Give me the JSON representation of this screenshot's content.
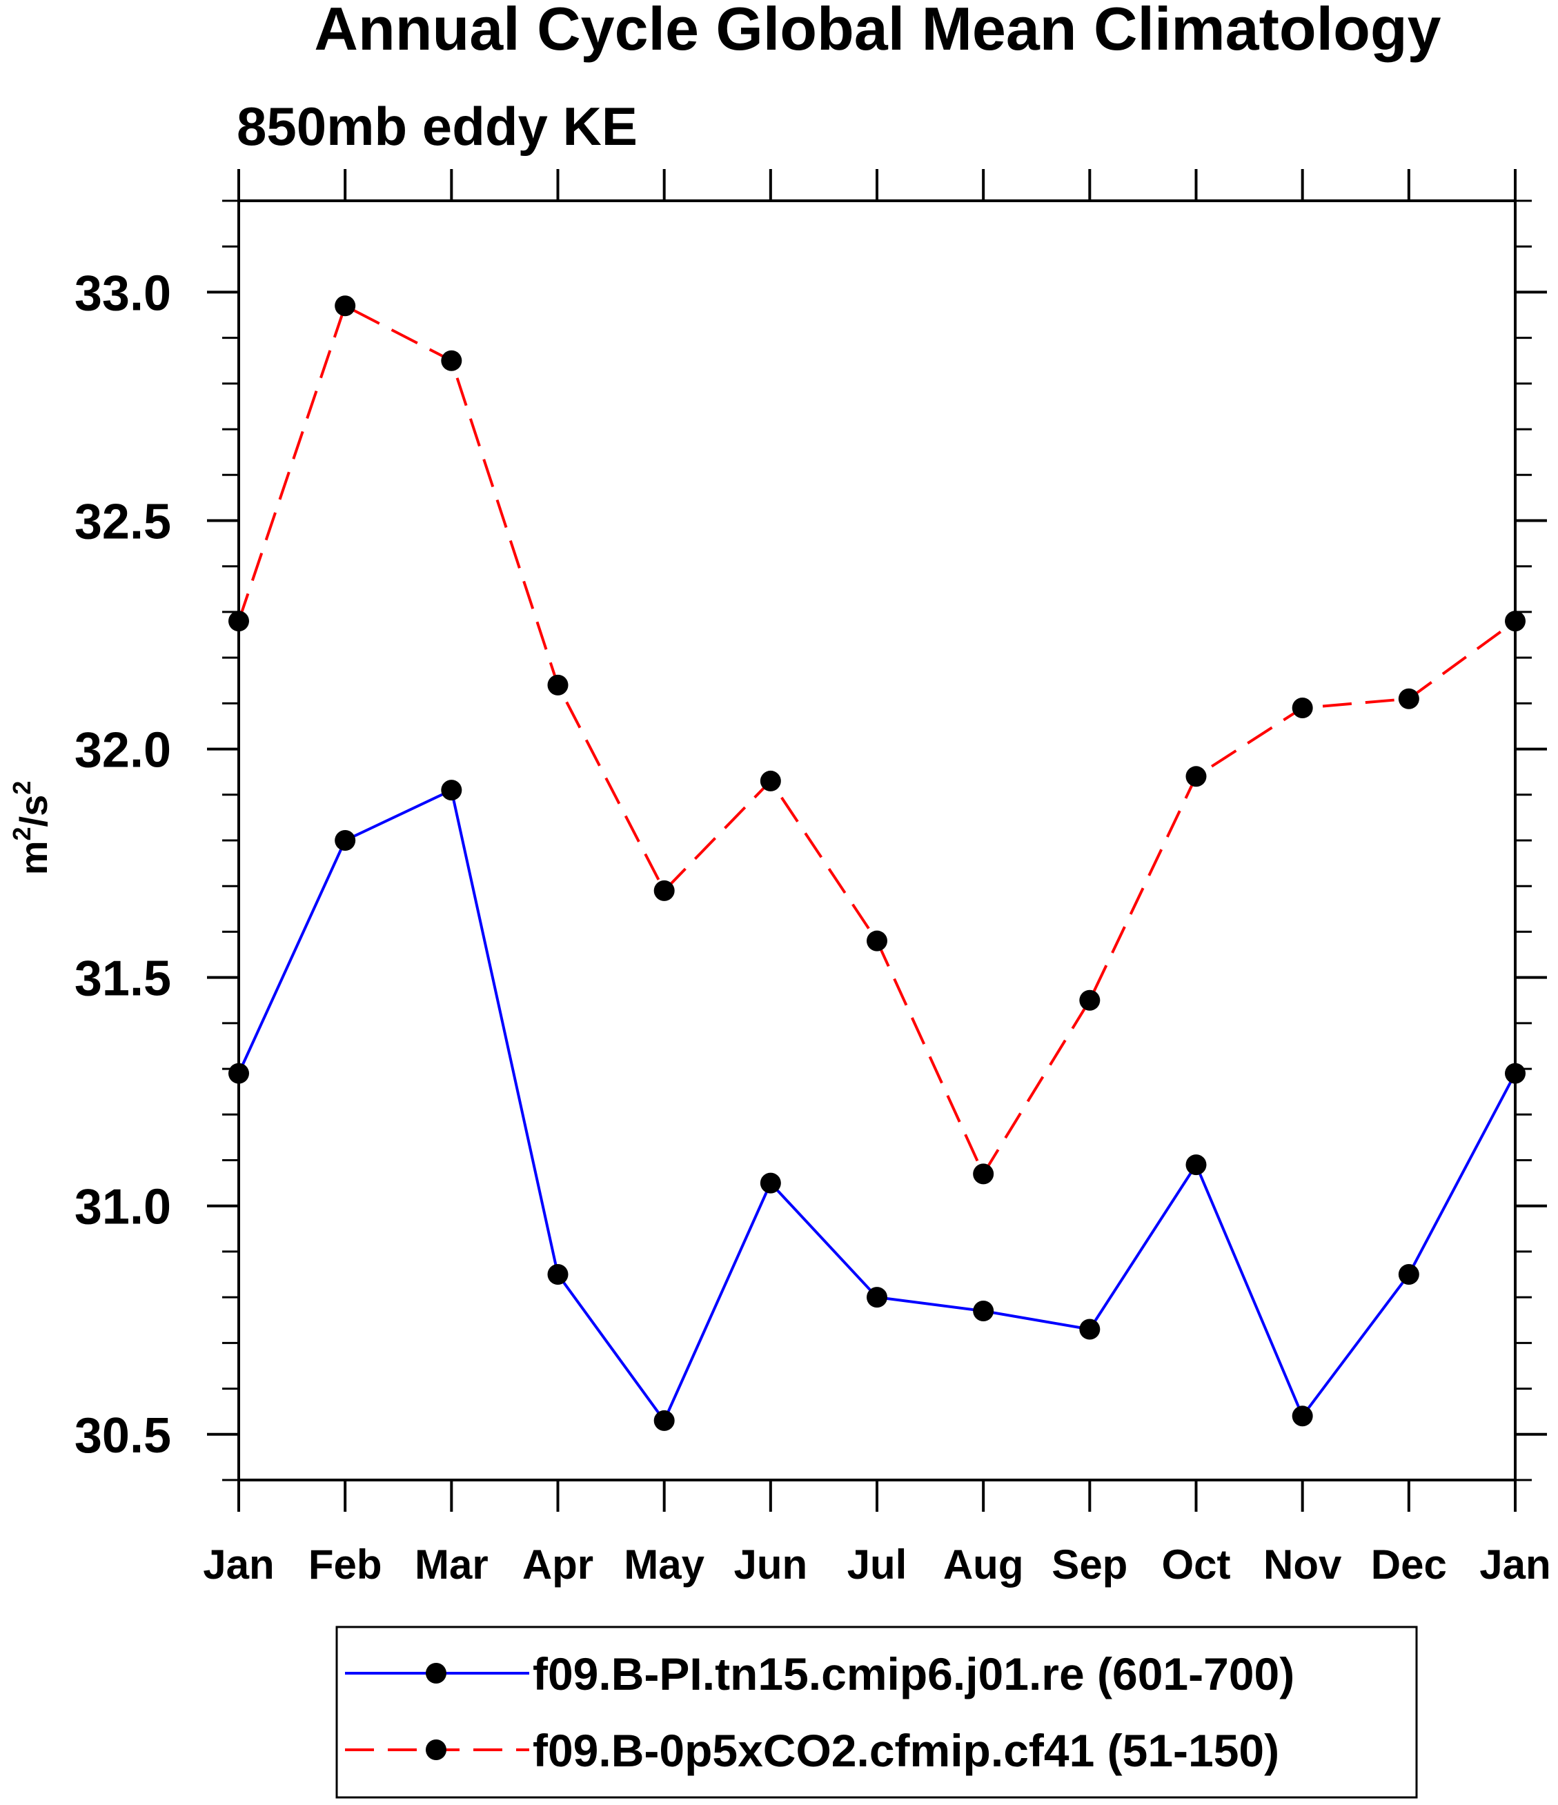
{
  "chart_data": {
    "type": "line",
    "title": "Annual Cycle Global Mean Climatology",
    "subtitle": "850mb eddy KE",
    "ylabel_base": "m",
    "ylabel_sup1": "2",
    "ylabel_mid": "/s",
    "ylabel_sup2": "2",
    "xlabel": "",
    "categories": [
      "Jan",
      "Feb",
      "Mar",
      "Apr",
      "May",
      "Jun",
      "Jul",
      "Aug",
      "Sep",
      "Oct",
      "Nov",
      "Dec",
      "Jan"
    ],
    "ylim": [
      30.4,
      33.2
    ],
    "yticks": [
      30.5,
      31.0,
      31.5,
      32.0,
      32.5,
      33.0
    ],
    "ytick_labels": [
      "30.5",
      "31.0",
      "31.5",
      "32.0",
      "32.5",
      "33.0"
    ],
    "y_minor_step": 0.1,
    "grid": false,
    "legend_position": "bottom",
    "series": [
      {
        "name": "f09.B-PI.tn15.cmip6.j01.re (601-700)",
        "color": "#0000ff",
        "dash": "solid",
        "values": [
          31.29,
          31.8,
          31.91,
          30.85,
          30.53,
          31.05,
          30.8,
          30.77,
          30.73,
          31.09,
          30.54,
          30.85,
          31.29
        ]
      },
      {
        "name": "f09.B-0p5xCO2.cfmip.cf41 (51-150)",
        "color": "#ff0000",
        "dash": "dashed",
        "values": [
          32.28,
          32.97,
          32.85,
          32.14,
          31.69,
          31.93,
          31.58,
          31.07,
          31.45,
          31.94,
          32.09,
          32.11,
          32.28
        ]
      }
    ]
  }
}
